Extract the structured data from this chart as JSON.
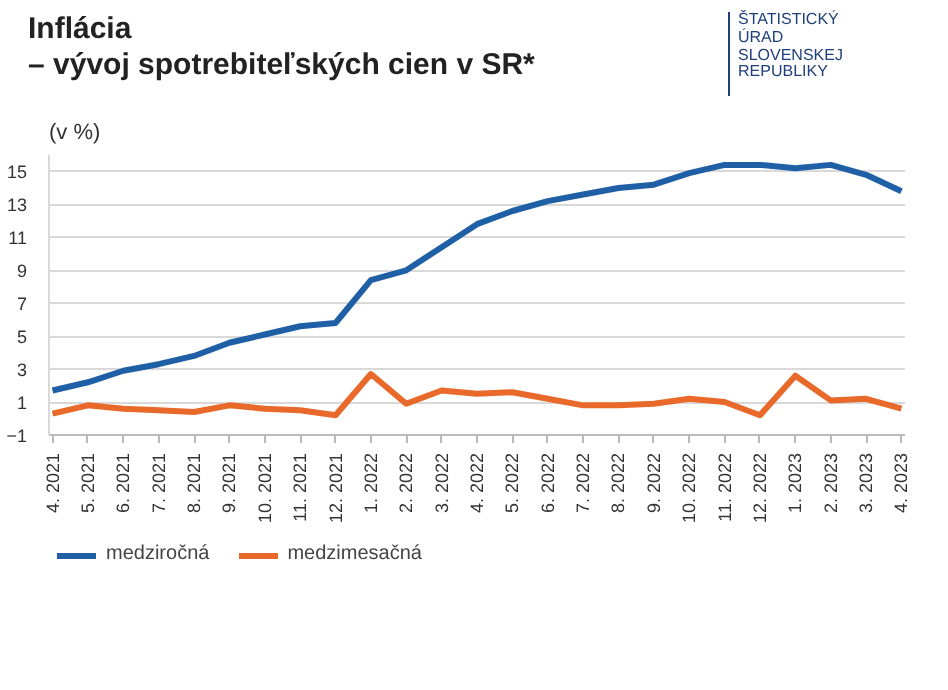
{
  "chart_data": {
    "type": "line",
    "title": "Inflácia\n– vývoj spotrebiteľských cien v SR*",
    "subtitle": "(v %)",
    "annotations": [
      "ŠTATISTICKÝ\nÚRAD\nSLOVENSKEJ\nREPUBLIKY"
    ],
    "categories": [
      "4. 2021",
      "5. 2021",
      "6. 2021",
      "7. 2021",
      "8. 2021",
      "9. 2021",
      "10. 2021",
      "11. 2021",
      "12. 2021",
      "1. 2022",
      "2. 2022",
      "3. 2022",
      "4. 2022",
      "5. 2022",
      "6. 2022",
      "7. 2022",
      "8. 2022",
      "9. 2022",
      "10. 2022",
      "11. 2022",
      "12. 2022",
      "1. 2023",
      "2. 2023",
      "3. 2023",
      "4. 2023"
    ],
    "series": [
      {
        "name": "medziročná",
        "color": "#1f5fa6",
        "values": [
          1.7,
          2.2,
          2.9,
          3.3,
          3.8,
          4.6,
          5.1,
          5.6,
          5.8,
          8.4,
          9.0,
          10.4,
          11.8,
          12.6,
          13.2,
          13.6,
          14.0,
          14.2,
          14.9,
          15.4,
          15.4,
          15.2,
          15.4,
          14.8,
          13.8
        ]
      },
      {
        "name": "medzimesačná",
        "color": "#e8692a",
        "values": [
          0.3,
          0.8,
          0.6,
          0.5,
          0.4,
          0.8,
          0.6,
          0.5,
          0.2,
          2.7,
          0.9,
          1.7,
          1.5,
          1.6,
          1.2,
          0.8,
          0.8,
          0.9,
          1.2,
          1.0,
          0.2,
          2.6,
          1.1,
          1.2,
          0.6
        ]
      }
    ],
    "ylim": [
      -1,
      16
    ],
    "yticks": [
      -1,
      1,
      3,
      5,
      7,
      9,
      11,
      13,
      15
    ],
    "grid": "y",
    "legend": "bottom left",
    "marker": "none",
    "line_style": "solid"
  }
}
